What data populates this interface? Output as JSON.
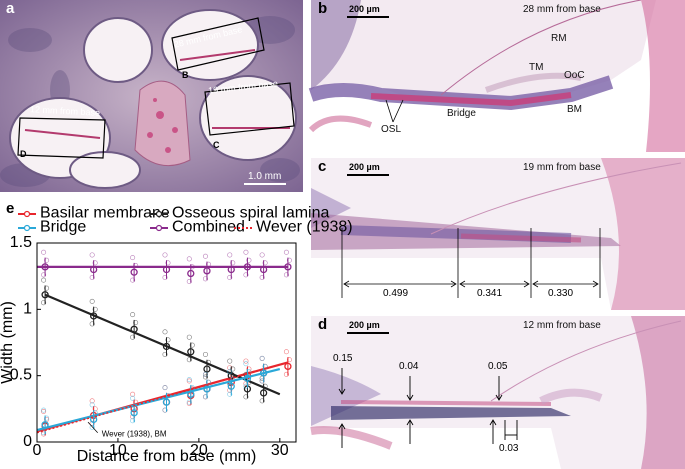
{
  "panel_a": {
    "label": "a",
    "boxes": [
      {
        "id": "B",
        "caption": "28 mm from base",
        "letter": "B"
      },
      {
        "id": "C",
        "caption": "19 mm from base",
        "letter": "C"
      },
      {
        "id": "D",
        "caption": "12 mm from base",
        "letter": "D"
      }
    ],
    "scale_bar": "1.0 mm"
  },
  "panel_b": {
    "label": "b",
    "scale_bar": "200 µm",
    "title": "28 mm from base",
    "annotations": {
      "rm": "RM",
      "tm": "TM",
      "ooc": "OoC",
      "bm": "BM",
      "osl": "OSL",
      "bridge": "Bridge"
    }
  },
  "panel_c": {
    "label": "c",
    "scale_bar": "200 µm",
    "title": "19 mm from base",
    "measurements": [
      "0.499",
      "0.341",
      "0.330"
    ]
  },
  "panel_d": {
    "label": "d",
    "scale_bar": "200 µm",
    "title": "12 mm from base",
    "measurements": [
      "0.15",
      "0.04",
      "0.05",
      "0.03"
    ]
  },
  "panel_e": {
    "label": "e",
    "annotation": "Wever (1938), BM"
  },
  "chart_data": {
    "type": "scatter",
    "xlabel": "Distance from base (mm)",
    "ylabel": "Width (mm)",
    "xlim": [
      0,
      32
    ],
    "ylim": [
      0,
      1.5
    ],
    "xticks": [
      0,
      10,
      20,
      30
    ],
    "yticks": [
      0,
      0.5,
      1,
      1.5
    ],
    "grid": false,
    "legend": "top",
    "colors": {
      "basilar": "#e8262d",
      "osl": "#222222",
      "bridge": "#2aa8d8",
      "combined": "#8a2a8c",
      "wever": "#e8262d"
    },
    "series": [
      {
        "name": "Basilar membrane",
        "key": "basilar",
        "fit": [
          [
            0,
            0.08
          ],
          [
            31,
            0.6
          ]
        ],
        "means": [
          [
            1,
            0.12
          ],
          [
            7,
            0.2
          ],
          [
            12,
            0.25
          ],
          [
            16,
            0.3
          ],
          [
            19,
            0.35
          ],
          [
            21,
            0.4
          ],
          [
            24,
            0.45
          ],
          [
            26,
            0.5
          ],
          [
            28,
            0.52
          ],
          [
            31,
            0.57
          ]
        ]
      },
      {
        "name": "Osseous spiral lamina",
        "key": "osl",
        "fit": [
          [
            1,
            1.11
          ],
          [
            30,
            0.36
          ]
        ],
        "means": [
          [
            1,
            1.11
          ],
          [
            7,
            0.95
          ],
          [
            12,
            0.85
          ],
          [
            16,
            0.72
          ],
          [
            19,
            0.68
          ],
          [
            21,
            0.55
          ],
          [
            24,
            0.5
          ],
          [
            26,
            0.4
          ],
          [
            28,
            0.37
          ]
        ]
      },
      {
        "name": "Bridge",
        "key": "bridge",
        "fit": [
          [
            0,
            0.09
          ],
          [
            30,
            0.55
          ]
        ],
        "means": [
          [
            1,
            0.13
          ],
          [
            7,
            0.17
          ],
          [
            12,
            0.22
          ],
          [
            16,
            0.3
          ],
          [
            19,
            0.36
          ],
          [
            21,
            0.4
          ],
          [
            24,
            0.42
          ],
          [
            26,
            0.48
          ],
          [
            28,
            0.52
          ]
        ]
      },
      {
        "name": "Combined",
        "key": "combined",
        "fit": [
          [
            0,
            1.32
          ],
          [
            31,
            1.32
          ]
        ],
        "means": [
          [
            1,
            1.32
          ],
          [
            7,
            1.3
          ],
          [
            12,
            1.28
          ],
          [
            16,
            1.3
          ],
          [
            19,
            1.27
          ],
          [
            21,
            1.29
          ],
          [
            24,
            1.3
          ],
          [
            26,
            1.32
          ],
          [
            28,
            1.3
          ],
          [
            31,
            1.32
          ]
        ]
      },
      {
        "name": "Wever (1938)",
        "key": "wever",
        "dotted": true,
        "fit": [
          [
            0,
            0.07
          ],
          [
            31,
            0.6
          ]
        ]
      }
    ]
  }
}
